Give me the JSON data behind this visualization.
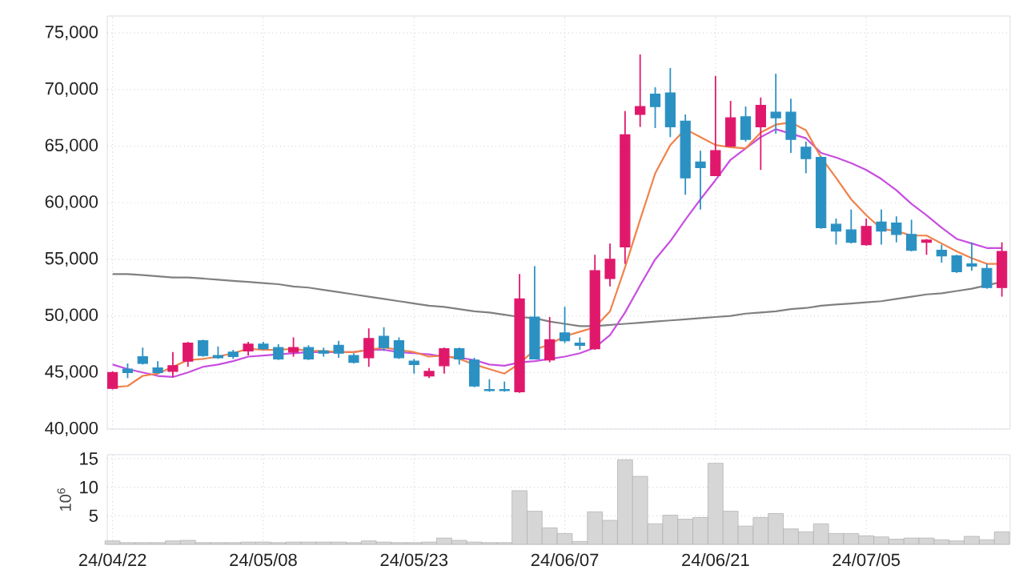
{
  "chart_data": [
    {
      "type": "candlestick",
      "categories": [
        null,
        null,
        null,
        null,
        null,
        null,
        null,
        null,
        null,
        null,
        null,
        null,
        null,
        null,
        null,
        null,
        null,
        null,
        null,
        null,
        null,
        null,
        null,
        null,
        null,
        null,
        null,
        null,
        null,
        null,
        null,
        null,
        null,
        null,
        null,
        null,
        null,
        null,
        null,
        null,
        null,
        null,
        null,
        null,
        null,
        null,
        null,
        null,
        null,
        null,
        null,
        null,
        null,
        null,
        null,
        null,
        null,
        null,
        null,
        null
      ],
      "ohlc": [
        [
          43600,
          45100,
          43500,
          45000
        ],
        [
          45300,
          45800,
          44500,
          45000
        ],
        [
          46400,
          47200,
          45700,
          45800
        ],
        [
          45400,
          46000,
          44900,
          45000
        ],
        [
          45100,
          46800,
          44600,
          45600
        ],
        [
          46000,
          47700,
          45500,
          47600
        ],
        [
          47800,
          47900,
          46400,
          46500
        ],
        [
          46500,
          47300,
          46200,
          46300
        ],
        [
          46800,
          47000,
          46200,
          46400
        ],
        [
          46900,
          47700,
          46500,
          47500
        ],
        [
          47500,
          47700,
          47000,
          47100
        ],
        [
          47200,
          47500,
          46100,
          46200
        ],
        [
          46800,
          48100,
          46400,
          47200
        ],
        [
          47200,
          47400,
          46100,
          46200
        ],
        [
          46900,
          47200,
          46400,
          46700
        ],
        [
          47400,
          47800,
          46300,
          46700
        ],
        [
          46500,
          46700,
          45800,
          45900
        ],
        [
          46300,
          48900,
          45500,
          48000
        ],
        [
          48200,
          49000,
          46900,
          47200
        ],
        [
          47800,
          48100,
          46200,
          46300
        ],
        [
          46000,
          46200,
          44900,
          45700
        ],
        [
          44700,
          45400,
          44500,
          45100
        ],
        [
          45600,
          47200,
          44900,
          47100
        ],
        [
          47100,
          47200,
          45700,
          46200
        ],
        [
          46100,
          46300,
          43700,
          43800
        ],
        [
          43500,
          44400,
          43300,
          43400
        ],
        [
          43500,
          44200,
          43300,
          43400
        ],
        [
          43300,
          53700,
          43200,
          51500
        ],
        [
          49900,
          54400,
          46200,
          46200
        ],
        [
          46100,
          49900,
          45900,
          47900
        ],
        [
          48500,
          50800,
          47600,
          47800
        ],
        [
          47600,
          48100,
          47000,
          47400
        ],
        [
          47100,
          55400,
          47000,
          54000
        ],
        [
          53300,
          56400,
          52600,
          55000
        ],
        [
          56100,
          68100,
          54600,
          66000
        ],
        [
          67800,
          73100,
          66700,
          68500
        ],
        [
          69600,
          70200,
          66600,
          68500
        ],
        [
          69700,
          71900,
          65800,
          66700
        ],
        [
          67200,
          67800,
          60700,
          62200
        ],
        [
          63600,
          64600,
          59400,
          63100
        ],
        [
          62400,
          71200,
          62400,
          64600
        ],
        [
          65000,
          69000,
          65000,
          67500
        ],
        [
          67600,
          68500,
          65400,
          65600
        ],
        [
          66700,
          69300,
          62900,
          68600
        ],
        [
          68000,
          71400,
          66100,
          67500
        ],
        [
          68000,
          69200,
          64400,
          65600
        ],
        [
          64900,
          65400,
          62600,
          63900
        ],
        [
          64000,
          64100,
          57700,
          57800
        ],
        [
          58100,
          58600,
          56300,
          57500
        ],
        [
          57600,
          59400,
          56400,
          56500
        ],
        [
          56300,
          58600,
          56200,
          57900
        ],
        [
          58300,
          59400,
          56300,
          57500
        ],
        [
          58200,
          58800,
          56500,
          57200
        ],
        [
          57200,
          58500,
          55700,
          55800
        ],
        [
          56500,
          56800,
          55400,
          56700
        ],
        [
          55800,
          56300,
          54700,
          55300
        ],
        [
          55300,
          55400,
          53800,
          53900
        ],
        [
          54600,
          56500,
          54000,
          54400
        ],
        [
          54200,
          54600,
          52400,
          52500
        ],
        [
          52500,
          56500,
          51700,
          55700
        ]
      ],
      "colors": [
        "#e0186c",
        "#2b91c3",
        "#2b91c3",
        "#2b91c3",
        "#e0186c",
        "#e0186c",
        "#2b91c3",
        "#2b91c3",
        "#2b91c3",
        "#e0186c",
        "#2b91c3",
        "#2b91c3",
        "#e0186c",
        "#2b91c3",
        "#2b91c3",
        "#2b91c3",
        "#2b91c3",
        "#e0186c",
        "#2b91c3",
        "#2b91c3",
        "#2b91c3",
        "#e0186c",
        "#e0186c",
        "#2b91c3",
        "#2b91c3",
        "#2b91c3",
        "#2b91c3",
        "#e0186c",
        "#2b91c3",
        "#e0186c",
        "#2b91c3",
        "#2b91c3",
        "#e0186c",
        "#e0186c",
        "#e0186c",
        "#e0186c",
        "#2b91c3",
        "#2b91c3",
        "#2b91c3",
        "#2b91c3",
        "#e0186c",
        "#e0186c",
        "#2b91c3",
        "#e0186c",
        "#2b91c3",
        "#2b91c3",
        "#2b91c3",
        "#2b91c3",
        "#2b91c3",
        "#2b91c3",
        "#e0186c",
        "#2b91c3",
        "#2b91c3",
        "#2b91c3",
        "#e0186c",
        "#2b91c3",
        "#2b91c3",
        "#2b91c3",
        "#2b91c3",
        "#e0186c"
      ],
      "series": [
        {
          "type": "line",
          "color": "#808080",
          "values": [
            53700,
            53700,
            53600,
            53500,
            53400,
            53400,
            53300,
            53200,
            53100,
            53000,
            52900,
            52800,
            52600,
            52500,
            52300,
            52100,
            51900,
            51700,
            51500,
            51300,
            51100,
            50900,
            50800,
            50600,
            50400,
            50300,
            50100,
            49900,
            49800,
            49500,
            49300,
            49100,
            49100,
            49200,
            49300,
            49400,
            49500,
            49600,
            49700,
            49800,
            49900,
            50000,
            50200,
            50300,
            50400,
            50600,
            50700,
            50900,
            51000,
            51100,
            51200,
            51300,
            51500,
            51700,
            51900,
            52000,
            52200,
            52400,
            52700,
            53000
          ]
        },
        {
          "type": "line",
          "color": "#c84ee0",
          "values": [
            45700,
            45300,
            45000,
            44700,
            44600,
            45000,
            45500,
            45700,
            46000,
            46400,
            46500,
            46600,
            46700,
            46800,
            46800,
            46800,
            46800,
            47000,
            47000,
            46800,
            46700,
            46600,
            46400,
            46300,
            46100,
            45700,
            45600,
            45900,
            46000,
            46200,
            46400,
            46700,
            47200,
            48300,
            50300,
            52700,
            55000,
            56600,
            58500,
            60300,
            62000,
            63800,
            64800,
            65800,
            66500,
            66100,
            65700,
            64400,
            64000,
            63500,
            62900,
            62100,
            61100,
            59900,
            58900,
            57800,
            56800,
            56400,
            56000,
            56000
          ]
        },
        {
          "type": "line",
          "color": "#f0824a",
          "values": [
            43700,
            43800,
            44700,
            44900,
            45500,
            46100,
            46200,
            46400,
            46700,
            47100,
            47000,
            47000,
            47100,
            46900,
            46900,
            46800,
            46800,
            47000,
            47200,
            47000,
            46800,
            46400,
            46500,
            46200,
            45700,
            45300,
            44900,
            45800,
            47000,
            47500,
            48200,
            48600,
            49000,
            50400,
            54300,
            58500,
            62600,
            65100,
            66500,
            65800,
            65100,
            64900,
            64800,
            66200,
            66900,
            67100,
            66400,
            64000,
            62200,
            60300,
            58900,
            57700,
            57500,
            57100,
            57100,
            56400,
            55700,
            55100,
            54600,
            54600
          ]
        }
      ],
      "ylim": [
        40000,
        76500
      ],
      "yticks": [
        {
          "value": 40000,
          "label": "40,000"
        },
        {
          "value": 45000,
          "label": "45,000"
        },
        {
          "value": 50000,
          "label": "50,000"
        },
        {
          "value": 55000,
          "label": "55,000"
        },
        {
          "value": 60000,
          "label": "60,000"
        },
        {
          "value": 65000,
          "label": "65,000"
        },
        {
          "value": 70000,
          "label": "70,000"
        },
        {
          "value": 75000,
          "label": "75,000"
        }
      ],
      "grid": true,
      "tick_labels": "y"
    },
    {
      "type": "bar",
      "categories": [
        "24/04/22",
        null,
        null,
        null,
        null,
        null,
        null,
        null,
        null,
        null,
        "24/05/08",
        null,
        null,
        null,
        null,
        null,
        null,
        null,
        null,
        null,
        "24/05/23",
        null,
        null,
        null,
        null,
        null,
        null,
        null,
        null,
        null,
        "24/06/07",
        null,
        null,
        null,
        null,
        null,
        null,
        null,
        null,
        null,
        "24/06/21",
        null,
        null,
        null,
        null,
        null,
        null,
        null,
        null,
        null,
        "24/07/05",
        null,
        null,
        null,
        null,
        null,
        null,
        null,
        null,
        null
      ],
      "values": [
        0.6,
        0.3,
        0.3,
        0.3,
        0.6,
        0.7,
        0.3,
        0.3,
        0.3,
        0.4,
        0.4,
        0.3,
        0.4,
        0.4,
        0.4,
        0.4,
        0.3,
        0.6,
        0.4,
        0.3,
        0.3,
        0.4,
        1.1,
        0.7,
        0.4,
        0.3,
        0.3,
        9.4,
        5.8,
        2.9,
        1.9,
        0.5,
        5.7,
        4.2,
        14.8,
        11.9,
        3.6,
        5.1,
        4.4,
        4.7,
        14.2,
        5.8,
        3.2,
        4.7,
        5.4,
        2.7,
        2.2,
        3.6,
        1.9,
        1.9,
        1.5,
        1.3,
        0.9,
        1.1,
        1.1,
        0.8,
        0.6,
        1.4,
        0.8,
        2.2
      ],
      "color": "#d6d6d6",
      "ylabel": "10$^{6}$",
      "ylim": [
        0,
        15.7
      ],
      "yticks": [
        5,
        10,
        15
      ],
      "grid": true
    }
  ]
}
